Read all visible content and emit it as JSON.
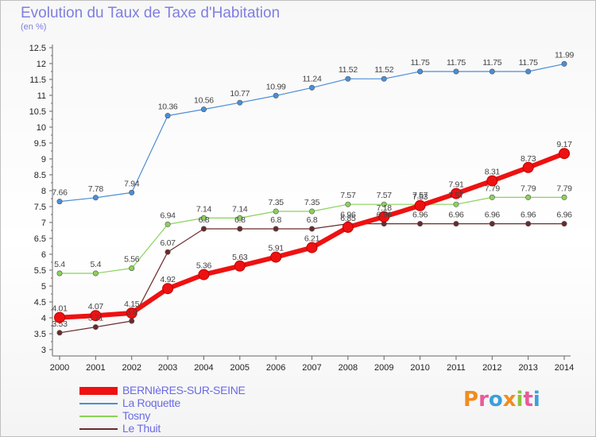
{
  "title": "Evolution du Taux de Taxe d'Habitation",
  "subtitle": "(en %)",
  "logo": {
    "text": "Proxiti",
    "letters": [
      "P",
      "r",
      "o",
      "x",
      "i",
      "t",
      "i"
    ],
    "colors": [
      "#f28c1e",
      "#e85a9a",
      "#3aa0dc",
      "#f28c1e",
      "#8ac43f",
      "#e85a9a",
      "#3aa0dc"
    ]
  },
  "chart_data": {
    "type": "line",
    "x": [
      "2000",
      "2001",
      "2002",
      "2003",
      "2004",
      "2005",
      "2006",
      "2007",
      "2008",
      "2009",
      "2010",
      "2011",
      "2012",
      "2013",
      "2014"
    ],
    "ylim": [
      3,
      12.5
    ],
    "yticks": [
      "3",
      "3.5",
      "4",
      "4.5",
      "5",
      "5.5",
      "6",
      "6.5",
      "7",
      "7.5",
      "8",
      "8.5",
      "9",
      "9.5",
      "10",
      "10.5",
      "11",
      "11.5",
      "12",
      "12.5"
    ],
    "grid": false,
    "legend_position": "bottom-left",
    "series": [
      {
        "name": "BERNIèRES-SUR-SEINE",
        "color": "#ee1111",
        "values": [
          4.01,
          4.07,
          4.15,
          4.92,
          5.36,
          5.63,
          5.91,
          6.21,
          6.85,
          7.18,
          7.53,
          7.91,
          8.31,
          8.73,
          9.17
        ],
        "labels": [
          "4.01",
          "4.07",
          "4.15",
          "4.92",
          "5.36",
          "5.63",
          "5.91",
          "6.21",
          "6.85",
          "7.18",
          "7.53",
          "7.91",
          "8.31",
          "8.73",
          "9.17"
        ]
      },
      {
        "name": "La Roquette",
        "color": "#4b8ed6",
        "values": [
          7.66,
          7.78,
          7.94,
          10.36,
          10.56,
          10.77,
          10.99,
          11.24,
          11.52,
          11.52,
          11.75,
          11.75,
          11.75,
          11.75,
          11.99
        ],
        "labels": [
          "7.66",
          "7.78",
          "7.94",
          "10.36",
          "10.56",
          "10.77",
          "10.99",
          "11.24",
          "11.52",
          "11.52",
          "11.75",
          "11.75",
          "11.75",
          "11.75",
          "11.99"
        ]
      },
      {
        "name": "Tosny",
        "color": "#8ad25a",
        "values": [
          5.4,
          5.4,
          5.56,
          6.94,
          7.14,
          7.14,
          7.35,
          7.35,
          7.57,
          7.57,
          7.57,
          7.57,
          7.79,
          7.79,
          7.79
        ],
        "labels": [
          "5.4",
          "5.4",
          "5.56",
          "6.94",
          "7.14",
          "7.14",
          "7.35",
          "7.35",
          "7.57",
          "7.57",
          "7.57",
          "7.57",
          "7.79",
          "7.79",
          "7.79"
        ]
      },
      {
        "name": "Le Thuit",
        "color": "#6b2a2a",
        "values": [
          3.53,
          3.71,
          3.9,
          6.07,
          6.8,
          6.8,
          6.8,
          6.8,
          6.96,
          6.96,
          6.96,
          6.96,
          6.96,
          6.96,
          6.96
        ],
        "labels": [
          "3.53",
          "3.71",
          "3.9",
          "6.07",
          "6.8",
          "6.8",
          "6.8",
          "6.8",
          "6.96",
          "6.96",
          "6.96",
          "6.96",
          "6.96",
          "6.96",
          "6.96"
        ]
      }
    ]
  }
}
